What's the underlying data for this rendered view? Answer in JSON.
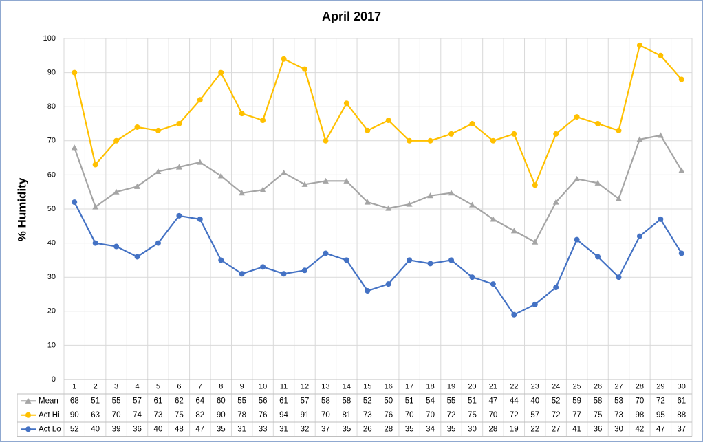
{
  "chart_data": {
    "type": "line",
    "title": "April 2017",
    "y_label": "% Humidity",
    "categories": [
      "1",
      "2",
      "3",
      "4",
      "5",
      "6",
      "7",
      "8",
      "9",
      "10",
      "11",
      "12",
      "13",
      "14",
      "15",
      "16",
      "17",
      "18",
      "19",
      "20",
      "21",
      "22",
      "23",
      "24",
      "25",
      "26",
      "27",
      "28",
      "29",
      "30"
    ],
    "series": [
      {
        "name": "Mean",
        "color": "#a5a5a5",
        "marker": "triangle",
        "values": [
          68,
          50.6,
          55,
          56.6,
          61,
          62.3,
          63.7,
          59.7,
          54.7,
          55.6,
          60.6,
          57.2,
          58.2,
          58.2,
          52,
          50.2,
          51.4,
          53.9,
          54.7,
          51.2,
          47,
          43.6,
          40.3,
          52,
          58.8,
          57.6,
          53,
          70.4,
          71.6,
          61.3
        ],
        "value_labels": [
          "68",
          "51",
          "55",
          "57",
          "61",
          "62",
          "64",
          "60",
          "55",
          "56",
          "61",
          "57",
          "58",
          "58",
          "52",
          "50",
          "51",
          "54",
          "55",
          "51",
          "47",
          "44",
          "40",
          "52",
          "59",
          "58",
          "53",
          "70",
          "72",
          "61"
        ]
      },
      {
        "name": "Act Hi",
        "color": "#ffc000",
        "marker": "circle",
        "values": [
          90,
          63,
          70,
          74,
          73,
          75,
          82,
          90,
          78,
          76,
          94,
          91,
          70,
          81,
          73,
          76,
          70,
          70,
          72,
          75,
          70,
          72,
          57,
          72,
          77,
          75,
          73,
          98,
          95,
          88
        ]
      },
      {
        "name": "Act Lo",
        "color": "#4472c4",
        "marker": "circle",
        "values": [
          52,
          40,
          39,
          36,
          40,
          48,
          47,
          35,
          31,
          33,
          31,
          32,
          37,
          35,
          26,
          28,
          35,
          34,
          35,
          30,
          28,
          19,
          22,
          27,
          41,
          36,
          30,
          42,
          47,
          37
        ]
      }
    ],
    "ylim": [
      0,
      100
    ],
    "yticks": [
      0,
      10,
      20,
      30,
      40,
      50,
      60,
      70,
      80,
      90,
      100
    ],
    "grid": true,
    "data_table": true
  }
}
